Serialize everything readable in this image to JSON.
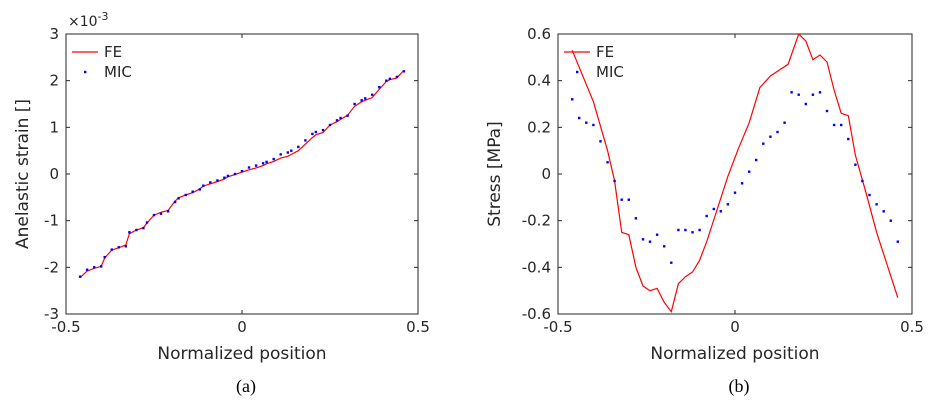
{
  "chart_data": [
    {
      "type": "line",
      "caption": "(a)",
      "xlabel": "Normalized position",
      "ylabel": "Anelastic strain []",
      "xlim": [
        -0.5,
        0.5
      ],
      "ylim": [
        -3,
        3
      ],
      "y_scale_factor": "×10",
      "y_scale_exponent": "-3",
      "xticks": [
        -0.5,
        0,
        0.5
      ],
      "xtick_labels": [
        "-0.5",
        "0",
        "0.5"
      ],
      "yticks": [
        -3,
        -2,
        -1,
        0,
        1,
        2,
        3
      ],
      "ytick_labels": [
        "-3",
        "-2",
        "-1",
        "0",
        "1",
        "2",
        "3"
      ],
      "grid": false,
      "legend_position": "top-left",
      "series": [
        {
          "name": "FE",
          "style": "line",
          "color": "#ff0000",
          "x": [
            -0.46,
            -0.44,
            -0.42,
            -0.4,
            -0.39,
            -0.37,
            -0.35,
            -0.33,
            -0.32,
            -0.3,
            -0.28,
            -0.27,
            -0.25,
            -0.23,
            -0.21,
            -0.19,
            -0.18,
            -0.16,
            -0.14,
            -0.12,
            -0.11,
            -0.09,
            -0.07,
            -0.05,
            -0.04,
            -0.02,
            0.0,
            0.02,
            0.04,
            0.06,
            0.07,
            0.09,
            0.11,
            0.13,
            0.14,
            0.16,
            0.18,
            0.2,
            0.21,
            0.23,
            0.25,
            0.27,
            0.28,
            0.3,
            0.32,
            0.34,
            0.35,
            0.37,
            0.39,
            0.41,
            0.42,
            0.44,
            0.46
          ],
          "y": [
            -2.22,
            -2.08,
            -2.02,
            -1.98,
            -1.8,
            -1.63,
            -1.58,
            -1.52,
            -1.28,
            -1.2,
            -1.15,
            -1.05,
            -0.88,
            -0.82,
            -0.78,
            -0.58,
            -0.51,
            -0.45,
            -0.4,
            -0.32,
            -0.26,
            -0.21,
            -0.16,
            -0.11,
            -0.06,
            -0.01,
            0.04,
            0.09,
            0.13,
            0.18,
            0.22,
            0.27,
            0.34,
            0.38,
            0.42,
            0.5,
            0.64,
            0.78,
            0.84,
            0.89,
            1.05,
            1.12,
            1.17,
            1.26,
            1.45,
            1.55,
            1.58,
            1.64,
            1.82,
            1.98,
            2.02,
            2.06,
            2.22
          ]
        },
        {
          "name": "MIC",
          "style": "dots",
          "color": "#0000ff",
          "x": [
            -0.46,
            -0.44,
            -0.42,
            -0.4,
            -0.39,
            -0.37,
            -0.35,
            -0.33,
            -0.32,
            -0.3,
            -0.28,
            -0.27,
            -0.25,
            -0.23,
            -0.21,
            -0.19,
            -0.18,
            -0.16,
            -0.14,
            -0.12,
            -0.11,
            -0.09,
            -0.07,
            -0.05,
            -0.04,
            -0.02,
            0.0,
            0.02,
            0.04,
            0.06,
            0.07,
            0.09,
            0.11,
            0.13,
            0.14,
            0.16,
            0.18,
            0.2,
            0.21,
            0.23,
            0.25,
            0.27,
            0.28,
            0.3,
            0.32,
            0.34,
            0.35,
            0.37,
            0.39,
            0.41,
            0.42,
            0.44,
            0.46
          ],
          "y": [
            -2.2,
            -2.05,
            -2.0,
            -1.98,
            -1.78,
            -1.62,
            -1.57,
            -1.55,
            -1.25,
            -1.2,
            -1.16,
            -1.04,
            -0.88,
            -0.85,
            -0.8,
            -0.6,
            -0.52,
            -0.45,
            -0.38,
            -0.33,
            -0.25,
            -0.18,
            -0.14,
            -0.08,
            -0.04,
            0.0,
            0.06,
            0.14,
            0.18,
            0.23,
            0.26,
            0.32,
            0.42,
            0.46,
            0.5,
            0.58,
            0.72,
            0.86,
            0.9,
            0.94,
            1.05,
            1.15,
            1.2,
            1.25,
            1.5,
            1.58,
            1.62,
            1.7,
            1.86,
            2.0,
            2.04,
            2.08,
            2.2
          ]
        }
      ]
    },
    {
      "type": "line",
      "caption": "(b)",
      "xlabel": "Normalized position",
      "ylabel": "Stress [MPa]",
      "xlim": [
        -0.5,
        0.5
      ],
      "ylim": [
        -0.6,
        0.6
      ],
      "xticks": [
        -0.5,
        0,
        0.5
      ],
      "xtick_labels": [
        "-0.5",
        "0",
        "0.5"
      ],
      "yticks": [
        -0.6,
        -0.4,
        -0.2,
        0,
        0.2,
        0.4,
        0.6
      ],
      "ytick_labels": [
        "-0.6",
        "-0.4",
        "-0.2",
        "0",
        "0.2",
        "0.4",
        "0.6"
      ],
      "grid": false,
      "legend_position": "top-right",
      "series": [
        {
          "name": "FE",
          "style": "line",
          "color": "#ff0000",
          "x": [
            -0.46,
            -0.4,
            -0.36,
            -0.34,
            -0.32,
            -0.3,
            -0.28,
            -0.26,
            -0.24,
            -0.22,
            -0.2,
            -0.18,
            -0.16,
            -0.14,
            -0.12,
            -0.1,
            -0.08,
            -0.05,
            -0.02,
            0.01,
            0.04,
            0.07,
            0.1,
            0.12,
            0.15,
            0.18,
            0.2,
            0.22,
            0.24,
            0.26,
            0.28,
            0.3,
            0.32,
            0.34,
            0.37,
            0.4,
            0.43,
            0.46
          ],
          "y": [
            0.53,
            0.31,
            0.1,
            -0.03,
            -0.25,
            -0.26,
            -0.4,
            -0.48,
            -0.5,
            -0.49,
            -0.55,
            -0.59,
            -0.47,
            -0.44,
            -0.42,
            -0.37,
            -0.29,
            -0.15,
            -0.01,
            0.11,
            0.22,
            0.37,
            0.42,
            0.44,
            0.47,
            0.6,
            0.57,
            0.49,
            0.51,
            0.48,
            0.36,
            0.26,
            0.25,
            0.08,
            -0.08,
            -0.25,
            -0.39,
            -0.53
          ]
        },
        {
          "name": "MIC",
          "style": "dots",
          "color": "#0000ff",
          "x": [
            -0.46,
            -0.44,
            -0.42,
            -0.4,
            -0.38,
            -0.36,
            -0.34,
            -0.32,
            -0.3,
            -0.28,
            -0.26,
            -0.24,
            -0.22,
            -0.2,
            -0.18,
            -0.16,
            -0.14,
            -0.12,
            -0.1,
            -0.08,
            -0.06,
            -0.04,
            -0.02,
            0.0,
            0.02,
            0.04,
            0.06,
            0.08,
            0.1,
            0.12,
            0.14,
            0.16,
            0.18,
            0.2,
            0.22,
            0.24,
            0.26,
            0.28,
            0.3,
            0.32,
            0.34,
            0.36,
            0.38,
            0.4,
            0.42,
            0.44,
            0.46
          ],
          "y": [
            0.32,
            0.24,
            0.22,
            0.21,
            0.14,
            0.05,
            -0.03,
            -0.11,
            -0.11,
            -0.19,
            -0.28,
            -0.29,
            -0.26,
            -0.31,
            -0.38,
            -0.24,
            -0.24,
            -0.25,
            -0.24,
            -0.18,
            -0.15,
            -0.16,
            -0.13,
            -0.08,
            -0.04,
            0.01,
            0.06,
            0.13,
            0.16,
            0.18,
            0.22,
            0.35,
            0.34,
            0.3,
            0.34,
            0.35,
            0.27,
            0.21,
            0.21,
            0.15,
            0.04,
            -0.03,
            -0.09,
            -0.13,
            -0.16,
            -0.2,
            -0.29
          ]
        }
      ]
    }
  ]
}
